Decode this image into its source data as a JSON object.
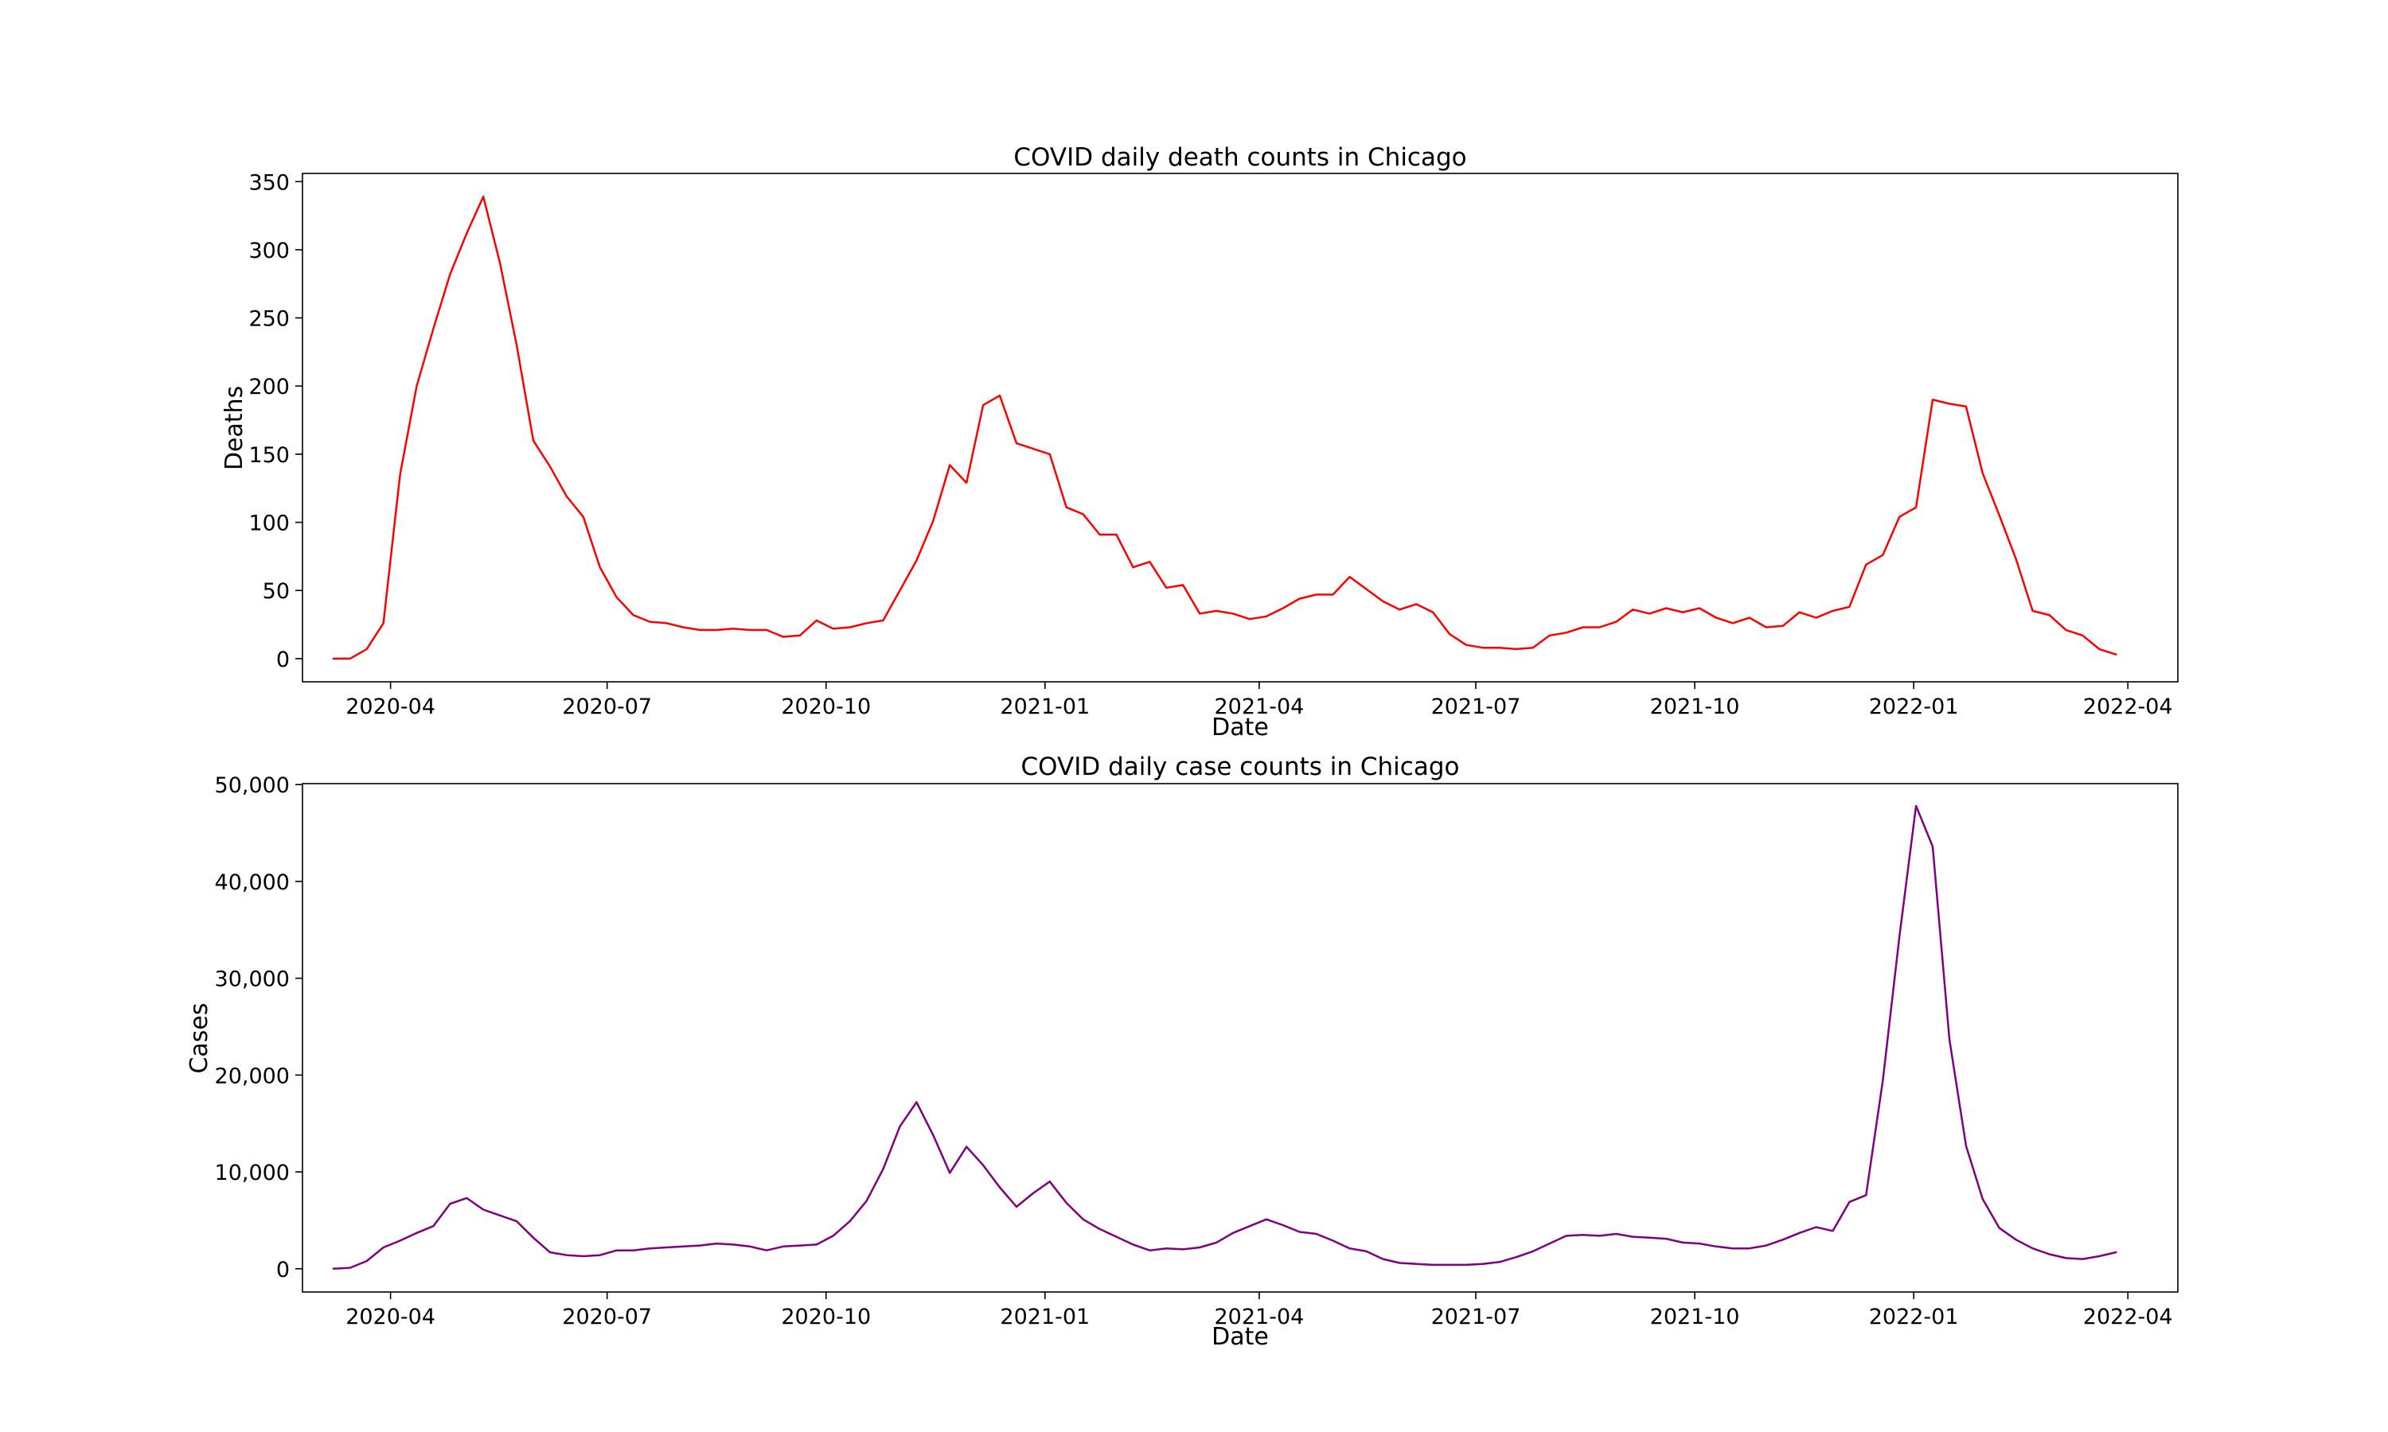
{
  "chart_data": [
    {
      "type": "line",
      "title": "COVID daily death counts in Chicago",
      "xlabel": "Date",
      "ylabel": "Deaths",
      "ylim": [
        -17,
        356
      ],
      "xlim": [
        "2020-02-24",
        "2022-04-22"
      ],
      "yticks": [
        0,
        50,
        100,
        150,
        200,
        250,
        300,
        350
      ],
      "ytick_labels": [
        "0",
        "50",
        "100",
        "150",
        "200",
        "250",
        "300",
        "350"
      ],
      "xticks": [
        "2020-04-01",
        "2020-07-01",
        "2020-10-01",
        "2021-01-01",
        "2021-04-01",
        "2021-07-01",
        "2021-10-01",
        "2022-01-01",
        "2022-04-01"
      ],
      "xtick_labels": [
        "2020-04",
        "2020-07",
        "2020-10",
        "2021-01",
        "2021-04",
        "2021-07",
        "2021-10",
        "2022-01",
        "2022-04"
      ],
      "grid": false,
      "series": [
        {
          "color": "#ff0000",
          "x": [
            "2020-03-08",
            "2020-03-15",
            "2020-03-22",
            "2020-03-29",
            "2020-04-05",
            "2020-04-12",
            "2020-04-19",
            "2020-04-26",
            "2020-05-03",
            "2020-05-10",
            "2020-05-17",
            "2020-05-24",
            "2020-05-31",
            "2020-06-07",
            "2020-06-14",
            "2020-06-21",
            "2020-06-28",
            "2020-07-05",
            "2020-07-12",
            "2020-07-19",
            "2020-07-26",
            "2020-08-02",
            "2020-08-09",
            "2020-08-16",
            "2020-08-23",
            "2020-08-30",
            "2020-09-06",
            "2020-09-13",
            "2020-09-20",
            "2020-09-27",
            "2020-10-04",
            "2020-10-11",
            "2020-10-18",
            "2020-10-25",
            "2020-11-01",
            "2020-11-08",
            "2020-11-15",
            "2020-11-22",
            "2020-11-29",
            "2020-12-06",
            "2020-12-13",
            "2020-12-20",
            "2020-12-27",
            "2021-01-03",
            "2021-01-10",
            "2021-01-17",
            "2021-01-24",
            "2021-01-31",
            "2021-02-07",
            "2021-02-14",
            "2021-02-21",
            "2021-02-28",
            "2021-03-07",
            "2021-03-14",
            "2021-03-21",
            "2021-03-28",
            "2021-04-04",
            "2021-04-11",
            "2021-04-18",
            "2021-04-25",
            "2021-05-02",
            "2021-05-09",
            "2021-05-16",
            "2021-05-23",
            "2021-05-30",
            "2021-06-06",
            "2021-06-13",
            "2021-06-20",
            "2021-06-27",
            "2021-07-04",
            "2021-07-11",
            "2021-07-18",
            "2021-07-25",
            "2021-08-01",
            "2021-08-08",
            "2021-08-15",
            "2021-08-22",
            "2021-08-29",
            "2021-09-05",
            "2021-09-12",
            "2021-09-19",
            "2021-09-26",
            "2021-10-03",
            "2021-10-10",
            "2021-10-17",
            "2021-10-24",
            "2021-10-31",
            "2021-11-07",
            "2021-11-14",
            "2021-11-21",
            "2021-11-28",
            "2021-12-05",
            "2021-12-12",
            "2021-12-19",
            "2021-12-26",
            "2022-01-02",
            "2022-01-09",
            "2022-01-16",
            "2022-01-23",
            "2022-01-30",
            "2022-02-06",
            "2022-02-13",
            "2022-02-20",
            "2022-02-27",
            "2022-03-06",
            "2022-03-13",
            "2022-03-20",
            "2022-03-27"
          ],
          "y": [
            0,
            0,
            7,
            26,
            135,
            200,
            242,
            282,
            312,
            339,
            290,
            230,
            160,
            141,
            119,
            104,
            67,
            45,
            32,
            27,
            26,
            23,
            21,
            21,
            22,
            21,
            21,
            16,
            17,
            28,
            22,
            23,
            26,
            28,
            50,
            72,
            101,
            142,
            129,
            186,
            193,
            158,
            154,
            150,
            111,
            106,
            91,
            91,
            67,
            71,
            52,
            54,
            33,
            35,
            33,
            29,
            31,
            37,
            44,
            47,
            47,
            60,
            51,
            42,
            36,
            40,
            34,
            18,
            10,
            8,
            8,
            7,
            8,
            17,
            19,
            23,
            23,
            27,
            36,
            33,
            37,
            34,
            37,
            30,
            26,
            30,
            23,
            24,
            34,
            30,
            35,
            38,
            69,
            76,
            104,
            111,
            190,
            187,
            185,
            136,
            105,
            73,
            35,
            32,
            21,
            17,
            7,
            3
          ]
        }
      ]
    },
    {
      "type": "line",
      "title": "COVID daily case counts in Chicago",
      "xlabel": "Date",
      "ylabel": "Cases",
      "ylim": [
        -2400,
        50100
      ],
      "xlim": [
        "2020-02-24",
        "2022-04-22"
      ],
      "yticks": [
        0,
        10000,
        20000,
        30000,
        40000,
        50000
      ],
      "ytick_labels": [
        "0",
        "10,000",
        "20,000",
        "30,000",
        "40,000",
        "50,000"
      ],
      "xticks": [
        "2020-04-01",
        "2020-07-01",
        "2020-10-01",
        "2021-01-01",
        "2021-04-01",
        "2021-07-01",
        "2021-10-01",
        "2022-01-01",
        "2022-04-01"
      ],
      "xtick_labels": [
        "2020-04",
        "2020-07",
        "2020-10",
        "2021-01",
        "2021-04",
        "2021-07",
        "2021-10",
        "2022-01",
        "2022-04"
      ],
      "grid": false,
      "series": [
        {
          "color": "#800080",
          "x": [
            "2020-03-08",
            "2020-03-15",
            "2020-03-22",
            "2020-03-29",
            "2020-04-05",
            "2020-04-12",
            "2020-04-19",
            "2020-04-26",
            "2020-05-03",
            "2020-05-10",
            "2020-05-17",
            "2020-05-24",
            "2020-05-31",
            "2020-06-07",
            "2020-06-14",
            "2020-06-21",
            "2020-06-28",
            "2020-07-05",
            "2020-07-12",
            "2020-07-19",
            "2020-07-26",
            "2020-08-02",
            "2020-08-09",
            "2020-08-16",
            "2020-08-23",
            "2020-08-30",
            "2020-09-06",
            "2020-09-13",
            "2020-09-20",
            "2020-09-27",
            "2020-10-04",
            "2020-10-11",
            "2020-10-18",
            "2020-10-25",
            "2020-11-01",
            "2020-11-08",
            "2020-11-15",
            "2020-11-22",
            "2020-11-29",
            "2020-12-06",
            "2020-12-13",
            "2020-12-20",
            "2020-12-27",
            "2021-01-03",
            "2021-01-10",
            "2021-01-17",
            "2021-01-24",
            "2021-01-31",
            "2021-02-07",
            "2021-02-14",
            "2021-02-21",
            "2021-02-28",
            "2021-03-07",
            "2021-03-14",
            "2021-03-21",
            "2021-03-28",
            "2021-04-04",
            "2021-04-11",
            "2021-04-18",
            "2021-04-25",
            "2021-05-02",
            "2021-05-09",
            "2021-05-16",
            "2021-05-23",
            "2021-05-30",
            "2021-06-06",
            "2021-06-13",
            "2021-06-20",
            "2021-06-27",
            "2021-07-04",
            "2021-07-11",
            "2021-07-18",
            "2021-07-25",
            "2021-08-01",
            "2021-08-08",
            "2021-08-15",
            "2021-08-22",
            "2021-08-29",
            "2021-09-05",
            "2021-09-12",
            "2021-09-19",
            "2021-09-26",
            "2021-10-03",
            "2021-10-10",
            "2021-10-17",
            "2021-10-24",
            "2021-10-31",
            "2021-11-07",
            "2021-11-14",
            "2021-11-21",
            "2021-11-28",
            "2021-12-05",
            "2021-12-12",
            "2021-12-19",
            "2021-12-26",
            "2022-01-02",
            "2022-01-09",
            "2022-01-16",
            "2022-01-23",
            "2022-01-30",
            "2022-02-06",
            "2022-02-13",
            "2022-02-20",
            "2022-02-27",
            "2022-03-06",
            "2022-03-13",
            "2022-03-20",
            "2022-03-27"
          ],
          "y": [
            0,
            100,
            800,
            2200,
            2900,
            3700,
            4400,
            6700,
            7300,
            6100,
            5500,
            4900,
            3200,
            1700,
            1400,
            1300,
            1400,
            1900,
            1900,
            2100,
            2200,
            2300,
            2400,
            2600,
            2500,
            2300,
            1900,
            2300,
            2400,
            2500,
            3400,
            4900,
            7000,
            10300,
            14700,
            17200,
            13800,
            9900,
            12600,
            10700,
            8400,
            6400,
            7800,
            9000,
            6800,
            5100,
            4100,
            3300,
            2500,
            1900,
            2100,
            2000,
            2200,
            2700,
            3700,
            4400,
            5100,
            4500,
            3800,
            3600,
            2900,
            2100,
            1800,
            1000,
            600,
            500,
            400,
            400,
            400,
            500,
            700,
            1200,
            1800,
            2600,
            3400,
            3500,
            3400,
            3600,
            3300,
            3200,
            3100,
            2700,
            2600,
            2300,
            2100,
            2100,
            2400,
            3000,
            3700,
            4300,
            3900,
            6900,
            7600,
            19400,
            34300,
            47800,
            43600,
            23700,
            12700,
            7200,
            4200,
            3000,
            2100,
            1500,
            1100,
            1000,
            1300,
            1700
          ]
        }
      ]
    }
  ]
}
